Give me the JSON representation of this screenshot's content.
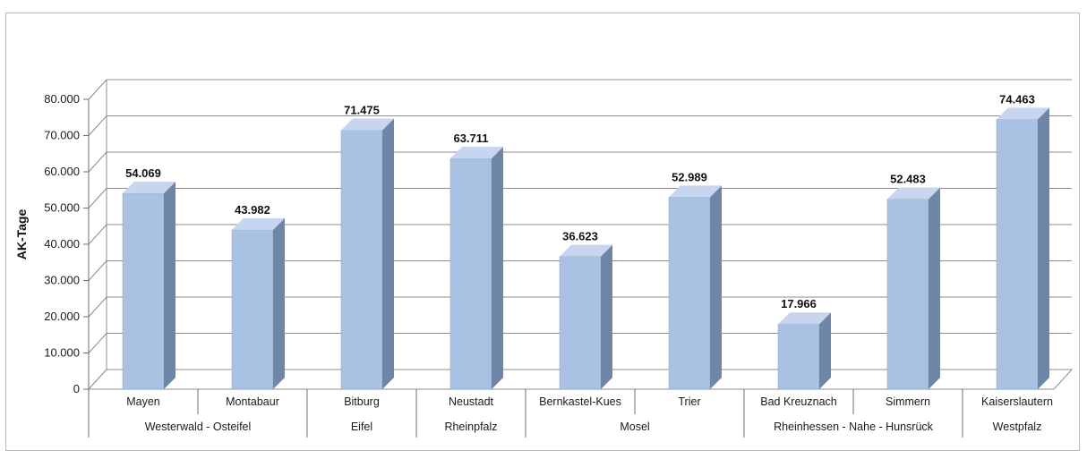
{
  "chart_data": {
    "type": "bar",
    "style": "3d-column",
    "ylabel": "AK-Tage",
    "xlabel": "",
    "title": "",
    "ylim": [
      0,
      80000
    ],
    "yticks": [
      0,
      10000,
      20000,
      30000,
      40000,
      50000,
      60000,
      70000,
      80000
    ],
    "ytick_labels": [
      "0",
      "10.000",
      "20.000",
      "30.000",
      "40.000",
      "50.000",
      "60.000",
      "70.000",
      "80.000"
    ],
    "grid": true,
    "legend": "none",
    "categories": [
      "Mayen",
      "Montabaur",
      "Bitburg",
      "Neustadt",
      "Bernkastel-Kues",
      "Trier",
      "Bad Kreuznach",
      "Simmern",
      "Kaiserslautern"
    ],
    "values": [
      54069,
      43982,
      71475,
      63711,
      36623,
      52989,
      17966,
      52483,
      74463
    ],
    "data_labels": [
      "54.069",
      "43.982",
      "71.475",
      "63.711",
      "36.623",
      "52.989",
      "17.966",
      "52.483",
      "74.463"
    ],
    "groups": [
      {
        "label": "Westerwald - Osteifel",
        "span": 2
      },
      {
        "label": "Eifel",
        "span": 1
      },
      {
        "label": "Rheinpfalz",
        "span": 1
      },
      {
        "label": "Mosel",
        "span": 2
      },
      {
        "label": "Rheinhessen - Nahe - Hunsrück",
        "span": 2
      },
      {
        "label": "Westpfalz",
        "span": 1
      }
    ],
    "colors": {
      "bar_front": "#a9c1e3",
      "bar_side": "#6f86a8",
      "bar_top": "#c7d6ee",
      "grid": "#8c8c8c",
      "axis": "#6e6e6e"
    }
  }
}
